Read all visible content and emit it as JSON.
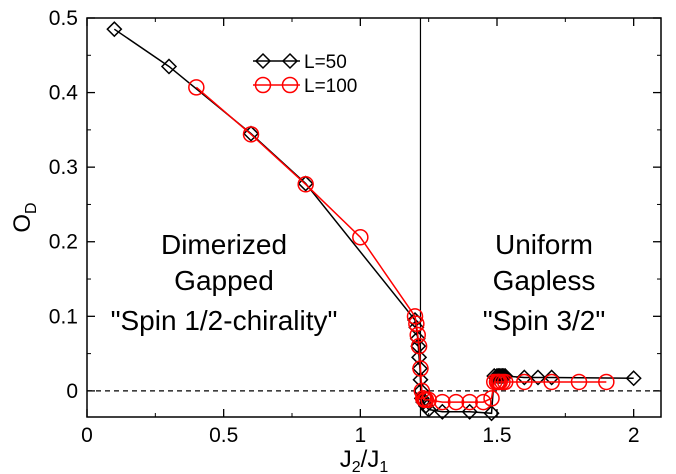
{
  "chart_data": {
    "type": "line",
    "xlabel": {
      "main": "J",
      "sub1": "2",
      "slash": "/J",
      "sub2": "1"
    },
    "ylabel": {
      "main": "O",
      "sub": "D"
    },
    "xlim": [
      0,
      2.1
    ],
    "ylim": [
      -0.035,
      0.5
    ],
    "xticks": [
      0,
      0.5,
      1,
      1.5,
      2
    ],
    "xtick_labels": [
      "0",
      "0.5",
      "1",
      "1.5",
      "2"
    ],
    "yticks": [
      0,
      0.1,
      0.2,
      0.3,
      0.4,
      0.5
    ],
    "ytick_labels": [
      "0",
      "0.1",
      "0.2",
      "0.3",
      "0.4",
      "0.5"
    ],
    "grid": false,
    "legend_position": "top-center",
    "vertical_line_x": 1.22,
    "reference_line_y": 0,
    "annotations": [
      {
        "lines": [
          "Dimerized",
          "Gapped",
          "\"Spin 1/2-chirality\""
        ],
        "x": 0.6,
        "y": [
          0.2,
          0.15,
          0.09
        ]
      },
      {
        "lines": [
          "Uniform",
          "Gapless",
          "\"Spin 3/2\""
        ],
        "x": 1.7,
        "y": [
          0.2,
          0.15,
          0.09
        ]
      }
    ],
    "series": [
      {
        "name": "L=50",
        "color": "#000000",
        "marker": "diamond",
        "x": [
          0.1,
          0.3,
          0.6,
          0.8,
          1.2,
          1.205,
          1.21,
          1.212,
          1.215,
          1.218,
          1.22,
          1.222,
          1.225,
          1.23,
          1.24,
          1.25,
          1.3,
          1.4,
          1.48,
          1.49,
          1.5,
          1.505,
          1.51,
          1.515,
          1.52,
          1.525,
          1.53,
          1.6,
          1.65,
          1.7,
          2.0
        ],
        "y": [
          0.485,
          0.435,
          0.345,
          0.278,
          0.095,
          0.085,
          0.07,
          0.06,
          0.045,
          0.03,
          0.015,
          0.0,
          -0.01,
          -0.015,
          -0.02,
          -0.025,
          -0.028,
          -0.028,
          -0.03,
          0.02,
          0.02,
          0.02,
          0.02,
          0.02,
          0.02,
          0.02,
          0.02,
          0.018,
          0.018,
          0.018,
          0.017
        ]
      },
      {
        "name": "L=100",
        "color": "#ff0000",
        "marker": "circle",
        "x": [
          0.4,
          0.6,
          0.8,
          1.0,
          1.2,
          1.205,
          1.21,
          1.215,
          1.22,
          1.225,
          1.23,
          1.235,
          1.24,
          1.25,
          1.3,
          1.35,
          1.4,
          1.45,
          1.48,
          1.49,
          1.5,
          1.505,
          1.51,
          1.52,
          1.53,
          1.6,
          1.7,
          1.8,
          1.9
        ],
        "y": [
          0.407,
          0.344,
          0.277,
          0.206,
          0.1,
          0.09,
          0.075,
          0.06,
          0.03,
          0.0,
          -0.01,
          -0.012,
          -0.012,
          -0.012,
          -0.015,
          -0.015,
          -0.015,
          -0.015,
          -0.01,
          0.012,
          0.012,
          0.012,
          0.012,
          0.012,
          0.012,
          0.012,
          0.012,
          0.012,
          0.012
        ]
      }
    ]
  }
}
